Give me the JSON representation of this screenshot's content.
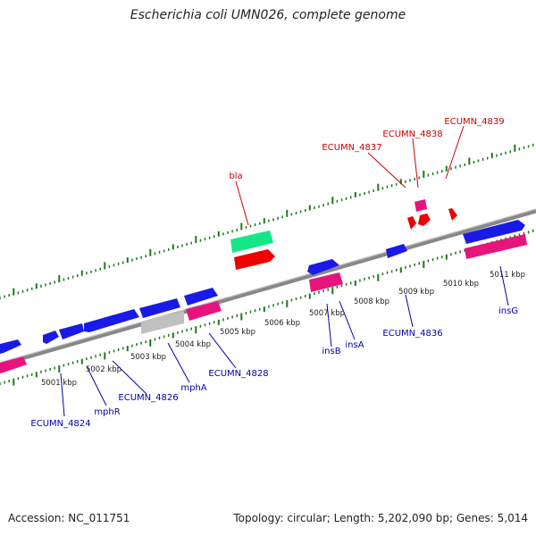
{
  "header": {
    "title": "Escherichia coli UMN026, complete genome"
  },
  "footer": {
    "accession": "Accession: NC_011751",
    "topology": "Topology: circular; Length: 5,202,090 bp; Genes: 5,014"
  },
  "scale_labels": [
    "5001 kbp",
    "5002 kbp",
    "5003 kbp",
    "5004 kbp",
    "5005 kbp",
    "5006 kbp",
    "5007 kbp",
    "5008 kbp",
    "5009 kbp",
    "5010 kbp",
    "5011 kbp"
  ],
  "features_top": [
    "bla",
    "ECUMN_4837",
    "ECUMN_4838",
    "ECUMN_4839"
  ],
  "features_bottom": [
    "ECUMN_4824",
    "mphR",
    "ECUMN_4826",
    "mphA",
    "ECUMN_4828",
    "insB",
    "insA",
    "ECUMN_4836",
    "insG"
  ],
  "colors": {
    "backbone": "#808080",
    "cds": "#1a1ae6",
    "gene": "#e6157d",
    "rrna": "#15e68a",
    "feature": "#ee0000",
    "pseudo": "#c0c0c0",
    "tick": "#1a7a1a",
    "label_top": "#cc0000",
    "label_bottom": "#0000aa"
  }
}
